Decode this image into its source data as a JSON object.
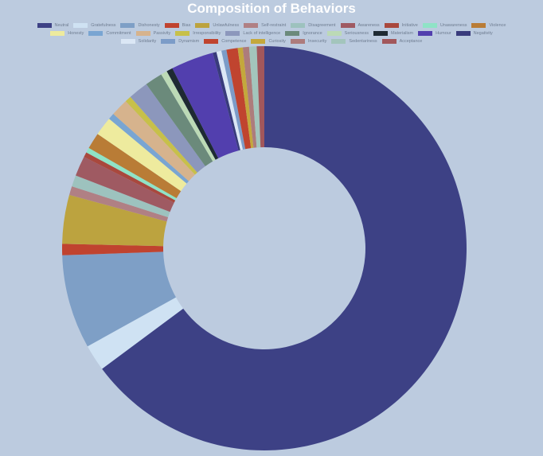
{
  "chart_data": {
    "type": "doughnut",
    "title": "Composition of Behaviors",
    "legend_position": "top",
    "unit": "percent (estimated from slice angles)",
    "categories": [
      "Neutral",
      "Gratefulness",
      "Dishonesty",
      "Bias",
      "Unlawfulness",
      "Self-restraint",
      "Disagreement",
      "Awareness",
      "Initiative",
      "Unawareness",
      "Violence",
      "Honesty",
      "Commitment",
      "Passivity",
      "Irresponsibility",
      "Lack of intelligence",
      "Ignorance",
      "Seriousness",
      "Materialism",
      "Humour",
      "Negativity",
      "Solidarity",
      "Dynamism",
      "Competence",
      "Curiosity",
      "Insecurity",
      "Sedentariness",
      "Acceptance"
    ],
    "values": [
      64.7,
      2.1,
      7.5,
      0.9,
      3.9,
      0.7,
      0.9,
      1.6,
      0.4,
      0.4,
      1.3,
      1.5,
      0.5,
      1.4,
      0.5,
      1.6,
      1.4,
      0.5,
      0.5,
      3.4,
      0.3,
      0.4,
      0.4,
      0.9,
      0.4,
      0.5,
      0.6,
      0.6
    ],
    "colors": [
      "#3d4185",
      "#cfe2f3",
      "#7e9fc6",
      "#c0432f",
      "#bca33f",
      "#b08084",
      "#9dc2be",
      "#9f5a62",
      "#a9483d",
      "#8fe3c6",
      "#b97c36",
      "#eeeb9e",
      "#79a5d2",
      "#d6b38d",
      "#c7c04a",
      "#8c97bc",
      "#6b8a7b",
      "#bcdab6",
      "#1e2a33",
      "#523fae",
      "#393b7c",
      "#dbe7f5",
      "#7c9cc8",
      "#c0442f",
      "#c4a83c",
      "#ad7c7c",
      "#a3c5bc",
      "#a2575b"
    ],
    "inner_radius_ratio": 0.5
  },
  "title": "Composition of Behaviors",
  "legend": {
    "items": [
      {
        "label": "Neutral",
        "color": "#3d4185"
      },
      {
        "label": "Gratefulness",
        "color": "#cfe2f3"
      },
      {
        "label": "Dishonesty",
        "color": "#7e9fc6"
      },
      {
        "label": "Bias",
        "color": "#c0432f"
      },
      {
        "label": "Unlawfulness",
        "color": "#bca33f"
      },
      {
        "label": "Self-restraint",
        "color": "#b08084"
      },
      {
        "label": "Disagreement",
        "color": "#9dc2be"
      },
      {
        "label": "Awareness",
        "color": "#9f5a62"
      },
      {
        "label": "Initiative",
        "color": "#a9483d"
      },
      {
        "label": "Unawareness",
        "color": "#8fe3c6"
      },
      {
        "label": "Violence",
        "color": "#b97c36"
      },
      {
        "label": "Honesty",
        "color": "#eeeb9e"
      },
      {
        "label": "Commitment",
        "color": "#79a5d2"
      },
      {
        "label": "Passivity",
        "color": "#d6b38d"
      },
      {
        "label": "Irresponsibility",
        "color": "#c7c04a"
      },
      {
        "label": "Lack of intelligence",
        "color": "#8c97bc"
      },
      {
        "label": "Ignorance",
        "color": "#6b8a7b"
      },
      {
        "label": "Seriousness",
        "color": "#bcdab6"
      },
      {
        "label": "Materialism",
        "color": "#1e2a33"
      },
      {
        "label": "Humour",
        "color": "#523fae"
      },
      {
        "label": "Negativity",
        "color": "#393b7c"
      },
      {
        "label": "Solidarity",
        "color": "#dbe7f5"
      },
      {
        "label": "Dynamism",
        "color": "#7c9cc8"
      },
      {
        "label": "Competence",
        "color": "#c0442f"
      },
      {
        "label": "Curiosity",
        "color": "#c4a83c"
      },
      {
        "label": "Insecurity",
        "color": "#ad7c7c"
      },
      {
        "label": "Sedentariness",
        "color": "#a3c5bc"
      },
      {
        "label": "Acceptance",
        "color": "#a2575b"
      }
    ]
  }
}
